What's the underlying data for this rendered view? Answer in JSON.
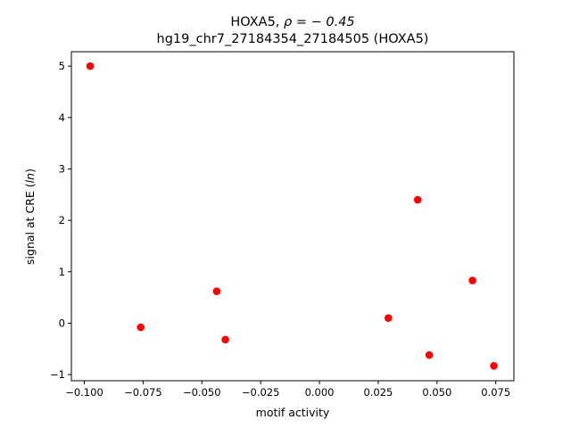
{
  "chart_data": {
    "type": "scatter",
    "title_prefix": "HOXA5, ",
    "title_rho": "ρ = − 0.45",
    "subtitle": "hg19_chr7_27184354_27184505 (HOXA5)",
    "xlabel": "motif activity",
    "ylabel": "signal at CRE (ln)",
    "ylabel_prefix": "signal at CRE (",
    "ylabel_italic": "ln",
    "ylabel_suffix": ")",
    "xlim": [
      -0.1055,
      0.0827
    ],
    "ylim": [
      -1.12,
      5.28
    ],
    "xticks": [
      -0.1,
      -0.075,
      -0.05,
      -0.025,
      0.0,
      0.025,
      0.05,
      0.075
    ],
    "xtick_labels": [
      "−0.100",
      "−0.075",
      "−0.050",
      "−0.025",
      "0.000",
      "0.025",
      "0.050",
      "0.075"
    ],
    "yticks": [
      -1,
      0,
      1,
      2,
      3,
      4,
      5
    ],
    "ytick_labels": [
      "−1",
      "0",
      "1",
      "2",
      "3",
      "4",
      "5"
    ],
    "grid": false,
    "marker_color": "#ff0000",
    "points": [
      {
        "x": -0.0975,
        "y": 5.0
      },
      {
        "x": -0.076,
        "y": -0.08
      },
      {
        "x": -0.0437,
        "y": 0.62
      },
      {
        "x": -0.04,
        "y": -0.32
      },
      {
        "x": 0.0293,
        "y": 0.1
      },
      {
        "x": 0.0418,
        "y": 2.4
      },
      {
        "x": 0.0467,
        "y": -0.62
      },
      {
        "x": 0.0651,
        "y": 0.83
      },
      {
        "x": 0.0742,
        "y": -0.83
      }
    ]
  }
}
